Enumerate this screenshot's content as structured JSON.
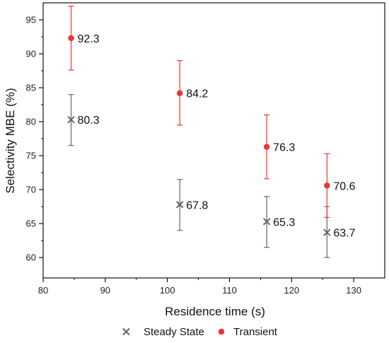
{
  "chart_data": {
    "type": "scatter",
    "xlabel": "Residence time (s)",
    "ylabel": "Selectivity MBE (%)",
    "xlim": [
      80,
      135
    ],
    "ylim": [
      57,
      97.5
    ],
    "xticks": [
      80,
      90,
      100,
      110,
      120,
      130
    ],
    "yticks": [
      60,
      65,
      70,
      75,
      80,
      85,
      90,
      95
    ],
    "legend_position": "bottom",
    "series": [
      {
        "name": "Steady State",
        "marker": "x",
        "color": "#666666",
        "points": [
          {
            "x": 84.5,
            "y": 80.3,
            "err_low": 76.5,
            "err_high": 84.0,
            "label": "80.3"
          },
          {
            "x": 102.0,
            "y": 67.8,
            "err_low": 64.0,
            "err_high": 71.5,
            "label": "67.8"
          },
          {
            "x": 116.0,
            "y": 65.3,
            "err_low": 61.5,
            "err_high": 69.0,
            "label": "65.3"
          },
          {
            "x": 125.7,
            "y": 63.7,
            "err_low": 60.0,
            "err_high": 67.5,
            "label": "63.7"
          }
        ]
      },
      {
        "name": "Transient",
        "marker": "circle",
        "color": "#ee3333",
        "points": [
          {
            "x": 84.5,
            "y": 92.3,
            "err_low": 87.6,
            "err_high": 97.0,
            "label": "92.3"
          },
          {
            "x": 102.0,
            "y": 84.2,
            "err_low": 79.5,
            "err_high": 89.0,
            "label": "84.2"
          },
          {
            "x": 116.0,
            "y": 76.3,
            "err_low": 71.6,
            "err_high": 81.0,
            "label": "76.3"
          },
          {
            "x": 125.7,
            "y": 70.6,
            "err_low": 65.9,
            "err_high": 75.3,
            "label": "70.6"
          }
        ]
      }
    ]
  }
}
